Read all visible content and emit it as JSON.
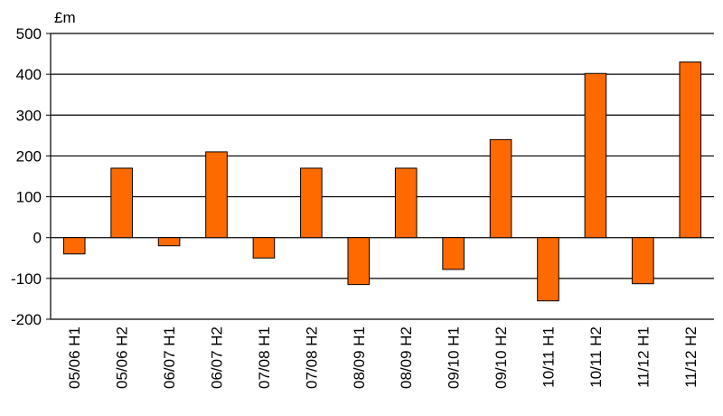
{
  "chart_data": {
    "type": "bar",
    "title": "",
    "xlabel": "",
    "ylabel": "£m",
    "ylim": [
      -200,
      500
    ],
    "yticks": [
      500,
      400,
      300,
      200,
      100,
      0,
      -100,
      -200
    ],
    "grid": true,
    "categories": [
      "05/06 H1",
      "05/06 H2",
      "06/07 H1",
      "06/07 H2",
      "07/08 H1",
      "07/08 H2",
      "08/09 H1",
      "08/09 H2",
      "09/10 H1",
      "09/10 H2",
      "10/11 H1",
      "10/11 H2",
      "11/12 H1",
      "11/12 H2"
    ],
    "values": [
      -40,
      170,
      -20,
      210,
      -50,
      170,
      -115,
      170,
      -78,
      240,
      -155,
      402,
      -113,
      430
    ],
    "bar_color": "#ff6a00",
    "bar_stroke": "#000000"
  }
}
